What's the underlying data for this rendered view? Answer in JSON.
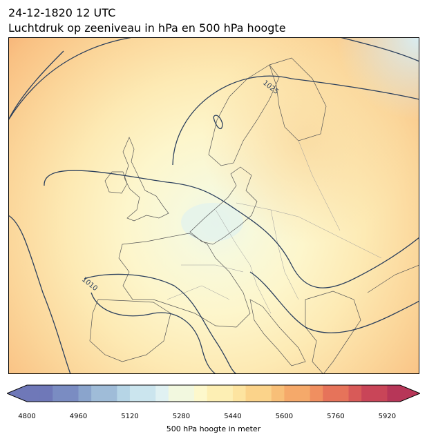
{
  "header": {
    "datetime": "24-12-1820 12 UTC",
    "title": "Luchtdruk op zeeniveau in hPa en 500 hPa hoogte"
  },
  "map": {
    "region": "Europe",
    "isobar_color": "#2b3f5c",
    "coast_color": "#444444",
    "border_color": "#999999",
    "isobar_labels": [
      "1025",
      "1010"
    ]
  },
  "colorbar": {
    "label": "500 hPa hoogte in meter",
    "ticks": [
      "4800",
      "4960",
      "5120",
      "5280",
      "5440",
      "5600",
      "5760",
      "5920"
    ],
    "range": [
      4800,
      5960
    ],
    "step": 40,
    "extend": "both",
    "colors": [
      "#6f78b8",
      "#7a8cc2",
      "#8aa4cc",
      "#9fbcd8",
      "#b6d5e6",
      "#cbe5ee",
      "#e0f1f2",
      "#f2f8df",
      "#fdf8cc",
      "#fdefb4",
      "#fde4a0",
      "#fbd38a",
      "#f8bf78",
      "#f5a96a",
      "#f08f60",
      "#e6735a",
      "#d85a58",
      "#c94558",
      "#b73658"
    ]
  }
}
